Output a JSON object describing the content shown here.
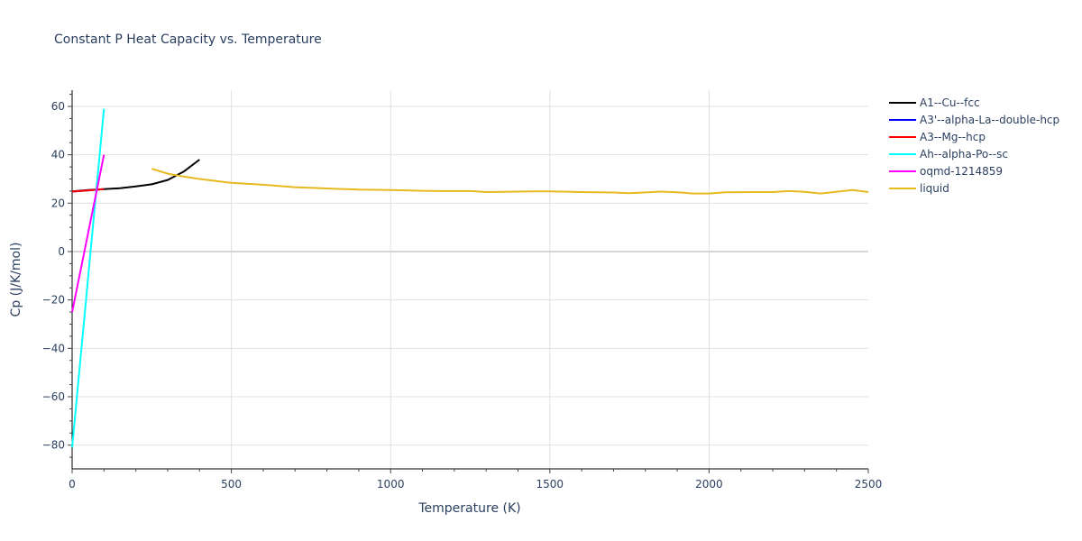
{
  "chart_data": {
    "type": "line",
    "title": "Constant P Heat Capacity vs. Temperature",
    "xlabel": "Temperature (K)",
    "ylabel": "Cp (J/K/mol)",
    "xlim": [
      0,
      2500
    ],
    "ylim": [
      -90,
      67
    ],
    "x_ticks": [
      0,
      500,
      1000,
      1500,
      2000,
      2500
    ],
    "y_ticks": [
      -80,
      -60,
      -40,
      -20,
      0,
      20,
      40,
      60
    ],
    "grid": true,
    "legend_position": "right",
    "series": [
      {
        "name": "A1--Cu--fcc",
        "color": "#000000",
        "x": [
          0,
          50,
          100,
          150,
          200,
          250,
          300,
          350,
          400
        ],
        "y": [
          24.9,
          25.4,
          25.8,
          26.2,
          26.9,
          27.8,
          29.6,
          33.0,
          38.0
        ]
      },
      {
        "name": "A3'--alpha-La--double-hcp",
        "color": "#0000ff",
        "x": [
          0,
          50,
          100
        ],
        "y": [
          24.8,
          25.3,
          25.8
        ]
      },
      {
        "name": "A3--Mg--hcp",
        "color": "#ff0000",
        "x": [
          0,
          50,
          100
        ],
        "y": [
          24.8,
          25.3,
          25.8
        ]
      },
      {
        "name": "Ah--alpha-Po--sc",
        "color": "#00ffff",
        "x": [
          0,
          100
        ],
        "y": [
          -81,
          59
        ]
      },
      {
        "name": "oqmd-1214859",
        "color": "#ff00ff",
        "x": [
          0,
          100
        ],
        "y": [
          -25,
          40
        ]
      },
      {
        "name": "liquid",
        "color": "#e6b91e",
        "x": [
          250,
          300,
          350,
          400,
          450,
          500,
          600,
          700,
          800,
          900,
          1000,
          1100,
          1150,
          1250,
          1300,
          1400,
          1450,
          1500,
          1600,
          1700,
          1750,
          1850,
          1900,
          1950,
          2000,
          2050,
          2150,
          2200,
          2250,
          2300,
          2350,
          2450,
          2500
        ],
        "y": [
          34.2,
          32.2,
          31.0,
          30.0,
          29.2,
          28.4,
          27.6,
          26.6,
          26.1,
          25.6,
          25.4,
          25.1,
          25.0,
          25.0,
          24.6,
          24.8,
          24.9,
          24.9,
          24.6,
          24.4,
          24.1,
          24.8,
          24.5,
          24.0,
          24.0,
          24.5,
          24.6,
          24.6,
          25.0,
          24.7,
          24.0,
          25.4,
          24.6
        ]
      }
    ]
  }
}
